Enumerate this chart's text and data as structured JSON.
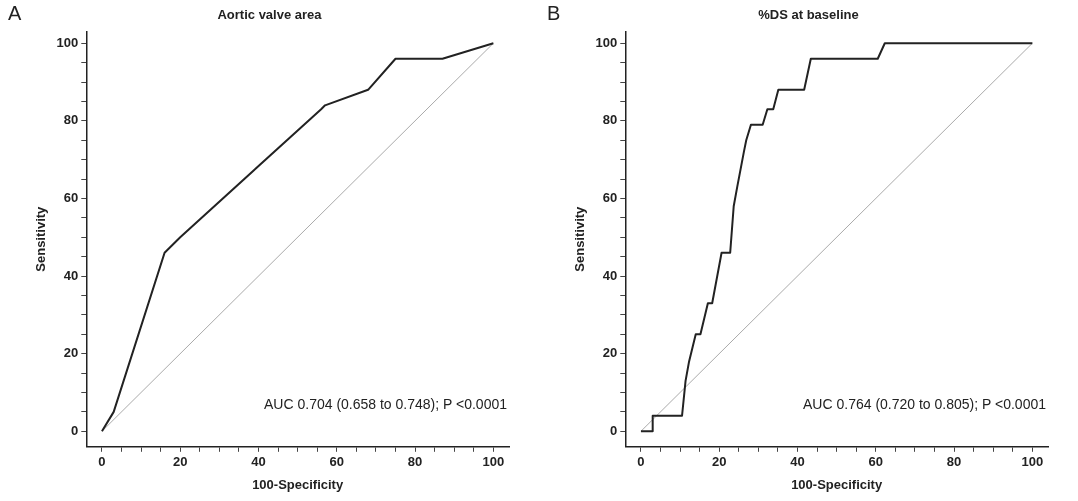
{
  "chart_data": [
    {
      "type": "line",
      "title": "Aortic valve area",
      "xlabel": "100-Specificity",
      "ylabel": "Sensitivity",
      "annotations": [
        "A",
        "AUC 0.704 (0.658 to 0.748); P <0.0001"
      ],
      "xlim": [
        -4,
        104
      ],
      "ylim": [
        -4,
        103
      ],
      "xticks": [
        0,
        {
          "value": 5,
          "label": null
        },
        {
          "value": 10,
          "label": null
        },
        {
          "value": 15,
          "label": null
        },
        20,
        {
          "value": 25,
          "label": null
        },
        {
          "value": 30,
          "label": null
        },
        {
          "value": 35,
          "label": null
        },
        40,
        {
          "value": 45,
          "label": null
        },
        {
          "value": 50,
          "label": null
        },
        {
          "value": 55,
          "label": null
        },
        60,
        {
          "value": 65,
          "label": null
        },
        {
          "value": 70,
          "label": null
        },
        {
          "value": 75,
          "label": null
        },
        80,
        {
          "value": 85,
          "label": null
        },
        {
          "value": 90,
          "label": null
        },
        {
          "value": 95,
          "label": null
        },
        100
      ],
      "yticks": [
        0,
        {
          "value": 5,
          "label": null
        },
        {
          "value": 10,
          "label": null
        },
        {
          "value": 15,
          "label": null
        },
        20,
        {
          "value": 25,
          "label": null
        },
        {
          "value": 30,
          "label": null
        },
        {
          "value": 35,
          "label": null
        },
        40,
        {
          "value": 45,
          "label": null
        },
        {
          "value": 50,
          "label": null
        },
        {
          "value": 55,
          "label": null
        },
        60,
        {
          "value": 65,
          "label": null
        },
        {
          "value": 70,
          "label": null
        },
        {
          "value": 75,
          "label": null
        },
        80,
        {
          "value": 85,
          "label": null
        },
        {
          "value": 90,
          "label": null
        },
        {
          "value": 95,
          "label": null
        },
        100
      ],
      "grid": false,
      "legend": false,
      "marker": "none",
      "series": [
        {
          "color": "#222222",
          "x": [
            0,
            3,
            16,
            20,
            56,
            57,
            68,
            75,
            87,
            100
          ],
          "values": [
            0,
            5,
            46,
            50,
            83,
            84,
            88,
            96,
            96,
            100
          ]
        },
        {
          "color": "#aaaaaa",
          "x": [
            0,
            100
          ],
          "values": [
            0,
            100
          ]
        }
      ]
    },
    {
      "type": "line",
      "title": "%DS at baseline",
      "xlabel": "100-Specificity",
      "ylabel": "Sensitivity",
      "annotations": [
        "B",
        "AUC 0.764 (0.720 to 0.805); P <0.0001"
      ],
      "xlim": [
        -4,
        104
      ],
      "ylim": [
        -4,
        103
      ],
      "xticks": [
        0,
        {
          "value": 5,
          "label": null
        },
        {
          "value": 10,
          "label": null
        },
        {
          "value": 15,
          "label": null
        },
        20,
        {
          "value": 25,
          "label": null
        },
        {
          "value": 30,
          "label": null
        },
        {
          "value": 35,
          "label": null
        },
        40,
        {
          "value": 45,
          "label": null
        },
        {
          "value": 50,
          "label": null
        },
        {
          "value": 55,
          "label": null
        },
        60,
        {
          "value": 65,
          "label": null
        },
        {
          "value": 70,
          "label": null
        },
        {
          "value": 75,
          "label": null
        },
        80,
        {
          "value": 85,
          "label": null
        },
        {
          "value": 90,
          "label": null
        },
        {
          "value": 95,
          "label": null
        },
        100
      ],
      "yticks": [
        0,
        {
          "value": 5,
          "label": null
        },
        {
          "value": 10,
          "label": null
        },
        {
          "value": 15,
          "label": null
        },
        20,
        {
          "value": 25,
          "label": null
        },
        {
          "value": 30,
          "label": null
        },
        {
          "value": 35,
          "label": null
        },
        40,
        {
          "value": 45,
          "label": null
        },
        {
          "value": 50,
          "label": null
        },
        {
          "value": 55,
          "label": null
        },
        60,
        {
          "value": 65,
          "label": null
        },
        {
          "value": 70,
          "label": null
        },
        {
          "value": 75,
          "label": null
        },
        80,
        {
          "value": 85,
          "label": null
        },
        {
          "value": 90,
          "label": null
        },
        {
          "value": 95,
          "label": null
        },
        100
      ],
      "grid": false,
      "legend": false,
      "marker": "none",
      "series": [
        {
          "color": "#222222",
          "x": [
            0,
            3,
            3,
            10.5,
            11.4,
            12.3,
            14,
            15.2,
            17.1,
            18.2,
            20.6,
            22.8,
            23.7,
            24.6,
            26.3,
            26.9,
            28.1,
            31.1,
            32.3,
            33.8,
            35.1,
            41.7,
            43.4,
            60.5,
            62.3,
            100
          ],
          "values": [
            0,
            0,
            4,
            4,
            13,
            18,
            25,
            25,
            33,
            33,
            46,
            46,
            58,
            63,
            72,
            75,
            79,
            79,
            83,
            83,
            88,
            88,
            96,
            96,
            100,
            100
          ]
        },
        {
          "color": "#aaaaaa",
          "x": [
            0,
            100
          ],
          "values": [
            0,
            100
          ]
        }
      ]
    }
  ]
}
